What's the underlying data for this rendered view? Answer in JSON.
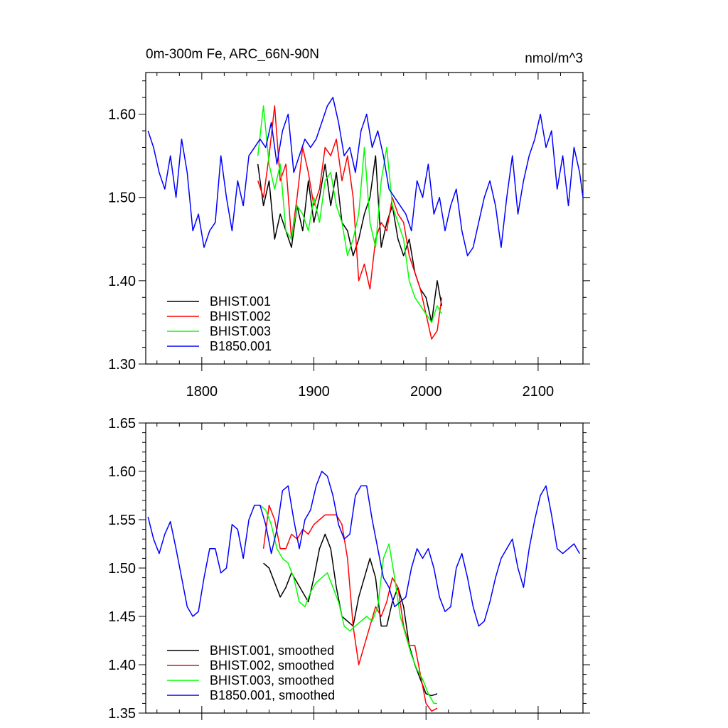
{
  "chart_data": [
    {
      "type": "line",
      "title": "0m-300m Fe, ARC_66N-90N",
      "units": "nmol/m^3",
      "xlim": [
        1750,
        2140
      ],
      "ylim": [
        1.3,
        1.65
      ],
      "xticks": [
        1800,
        1900,
        2000,
        2100
      ],
      "xtick_labels": [
        "1800",
        "1900",
        "2000",
        "2100"
      ],
      "yticks": [
        1.3,
        1.4,
        1.5,
        1.6
      ],
      "ytick_labels": [
        "1.30",
        "1.40",
        "1.50",
        "1.60"
      ],
      "legend_position": "bottom-left",
      "series": [
        {
          "name": "BHIST.001",
          "color": "#000000",
          "x": [
            1850,
            1855,
            1860,
            1865,
            1870,
            1875,
            1880,
            1885,
            1890,
            1895,
            1900,
            1905,
            1910,
            1915,
            1920,
            1925,
            1930,
            1935,
            1940,
            1945,
            1950,
            1955,
            1960,
            1965,
            1970,
            1975,
            1980,
            1985,
            1990,
            1995,
            2000,
            2005,
            2010,
            2014
          ],
          "y": [
            1.54,
            1.49,
            1.52,
            1.45,
            1.48,
            1.46,
            1.44,
            1.49,
            1.46,
            1.52,
            1.47,
            1.5,
            1.54,
            1.49,
            1.53,
            1.47,
            1.46,
            1.43,
            1.45,
            1.48,
            1.5,
            1.55,
            1.44,
            1.47,
            1.49,
            1.45,
            1.43,
            1.45,
            1.41,
            1.39,
            1.38,
            1.35,
            1.4,
            1.37
          ]
        },
        {
          "name": "BHIST.002",
          "color": "#ff0000",
          "x": [
            1850,
            1855,
            1860,
            1865,
            1870,
            1875,
            1880,
            1885,
            1890,
            1895,
            1900,
            1905,
            1910,
            1915,
            1920,
            1925,
            1930,
            1935,
            1940,
            1945,
            1950,
            1955,
            1960,
            1965,
            1970,
            1975,
            1980,
            1985,
            1990,
            1995,
            2000,
            2005,
            2010,
            2014
          ],
          "y": [
            1.52,
            1.5,
            1.55,
            1.61,
            1.52,
            1.54,
            1.45,
            1.5,
            1.56,
            1.53,
            1.49,
            1.51,
            1.56,
            1.55,
            1.57,
            1.52,
            1.55,
            1.5,
            1.4,
            1.42,
            1.39,
            1.45,
            1.47,
            1.46,
            1.5,
            1.48,
            1.47,
            1.43,
            1.41,
            1.39,
            1.36,
            1.33,
            1.34,
            1.38
          ]
        },
        {
          "name": "BHIST.003",
          "color": "#00ff00",
          "x": [
            1850,
            1855,
            1860,
            1865,
            1870,
            1875,
            1880,
            1885,
            1890,
            1895,
            1900,
            1905,
            1910,
            1915,
            1920,
            1925,
            1930,
            1935,
            1940,
            1945,
            1950,
            1955,
            1960,
            1965,
            1970,
            1975,
            1980,
            1985,
            1990,
            1995,
            2000,
            2005,
            2010,
            2014
          ],
          "y": [
            1.55,
            1.61,
            1.54,
            1.51,
            1.54,
            1.46,
            1.45,
            1.49,
            1.48,
            1.46,
            1.5,
            1.47,
            1.52,
            1.53,
            1.49,
            1.47,
            1.43,
            1.45,
            1.48,
            1.56,
            1.47,
            1.44,
            1.52,
            1.56,
            1.49,
            1.47,
            1.45,
            1.4,
            1.38,
            1.37,
            1.36,
            1.35,
            1.37,
            1.36
          ]
        },
        {
          "name": "B1850.001",
          "color": "#0000ff",
          "x": [
            1752,
            1757,
            1762,
            1767,
            1772,
            1777,
            1782,
            1787,
            1792,
            1797,
            1802,
            1807,
            1812,
            1817,
            1822,
            1827,
            1832,
            1837,
            1842,
            1847,
            1852,
            1857,
            1862,
            1867,
            1872,
            1877,
            1882,
            1887,
            1892,
            1897,
            1902,
            1907,
            1912,
            1917,
            1922,
            1927,
            1932,
            1937,
            1942,
            1947,
            1952,
            1957,
            1962,
            1967,
            1972,
            1977,
            1982,
            1987,
            1992,
            1997,
            2002,
            2007,
            2012,
            2017,
            2022,
            2027,
            2032,
            2037,
            2042,
            2047,
            2052,
            2057,
            2062,
            2067,
            2072,
            2077,
            2082,
            2087,
            2092,
            2097,
            2102,
            2107,
            2112,
            2117,
            2122,
            2127,
            2132,
            2137,
            2140
          ],
          "y": [
            1.58,
            1.56,
            1.53,
            1.51,
            1.55,
            1.5,
            1.57,
            1.53,
            1.46,
            1.48,
            1.44,
            1.46,
            1.47,
            1.55,
            1.5,
            1.46,
            1.52,
            1.49,
            1.55,
            1.56,
            1.57,
            1.56,
            1.59,
            1.54,
            1.58,
            1.6,
            1.53,
            1.55,
            1.57,
            1.56,
            1.57,
            1.59,
            1.61,
            1.62,
            1.59,
            1.55,
            1.56,
            1.53,
            1.58,
            1.6,
            1.56,
            1.58,
            1.55,
            1.51,
            1.5,
            1.49,
            1.48,
            1.46,
            1.52,
            1.5,
            1.54,
            1.48,
            1.5,
            1.46,
            1.49,
            1.51,
            1.46,
            1.43,
            1.44,
            1.47,
            1.5,
            1.52,
            1.49,
            1.44,
            1.5,
            1.55,
            1.48,
            1.52,
            1.55,
            1.57,
            1.6,
            1.56,
            1.58,
            1.51,
            1.55,
            1.49,
            1.56,
            1.53,
            1.5
          ]
        }
      ]
    },
    {
      "type": "line",
      "title": "",
      "xlim": [
        1750,
        2140
      ],
      "ylim": [
        1.35,
        1.65
      ],
      "xticks": [
        1800,
        1900,
        2000,
        2100
      ],
      "xtick_labels": [],
      "yticks": [
        1.35,
        1.4,
        1.45,
        1.5,
        1.55,
        1.6,
        1.65
      ],
      "ytick_labels": [
        "1.35",
        "1.40",
        "1.45",
        "1.50",
        "1.55",
        "1.60",
        "1.65"
      ],
      "legend_position": "bottom-left",
      "series": [
        {
          "name": "BHIST.001, smoothed",
          "color": "#000000",
          "x": [
            1855,
            1860,
            1865,
            1870,
            1875,
            1880,
            1885,
            1890,
            1895,
            1900,
            1905,
            1910,
            1915,
            1920,
            1925,
            1930,
            1935,
            1940,
            1945,
            1950,
            1955,
            1960,
            1965,
            1970,
            1975,
            1980,
            1985,
            1990,
            1995,
            2000,
            2005,
            2010
          ],
          "y": [
            1.505,
            1.5,
            1.485,
            1.47,
            1.48,
            1.495,
            1.485,
            1.475,
            1.465,
            1.49,
            1.52,
            1.535,
            1.52,
            1.48,
            1.45,
            1.445,
            1.44,
            1.47,
            1.49,
            1.51,
            1.49,
            1.44,
            1.44,
            1.465,
            1.48,
            1.46,
            1.42,
            1.4,
            1.385,
            1.37,
            1.368,
            1.37
          ]
        },
        {
          "name": "BHIST.002, smoothed",
          "color": "#ff0000",
          "x": [
            1855,
            1860,
            1865,
            1870,
            1875,
            1880,
            1885,
            1890,
            1895,
            1900,
            1905,
            1910,
            1915,
            1920,
            1925,
            1930,
            1935,
            1940,
            1945,
            1950,
            1955,
            1960,
            1965,
            1970,
            1975,
            1980,
            1985,
            1990,
            1995,
            2000,
            2005,
            2010
          ],
          "y": [
            1.52,
            1.565,
            1.55,
            1.52,
            1.52,
            1.535,
            1.53,
            1.54,
            1.535,
            1.545,
            1.55,
            1.555,
            1.555,
            1.555,
            1.545,
            1.51,
            1.44,
            1.4,
            1.42,
            1.44,
            1.46,
            1.45,
            1.465,
            1.49,
            1.48,
            1.44,
            1.42,
            1.42,
            1.39,
            1.36,
            1.352,
            1.355
          ]
        },
        {
          "name": "BHIST.003, smoothed",
          "color": "#00ff00",
          "x": [
            1852,
            1857,
            1862,
            1867,
            1872,
            1877,
            1882,
            1887,
            1892,
            1897,
            1902,
            1907,
            1912,
            1917,
            1922,
            1927,
            1932,
            1937,
            1942,
            1947,
            1952,
            1957,
            1962,
            1967,
            1972,
            1977,
            1982,
            1987,
            1992,
            1997,
            2002,
            2007,
            2010
          ],
          "y": [
            1.565,
            1.56,
            1.545,
            1.52,
            1.51,
            1.505,
            1.49,
            1.465,
            1.46,
            1.475,
            1.485,
            1.49,
            1.495,
            1.48,
            1.465,
            1.44,
            1.435,
            1.44,
            1.445,
            1.45,
            1.445,
            1.46,
            1.51,
            1.525,
            1.49,
            1.45,
            1.43,
            1.41,
            1.395,
            1.385,
            1.37,
            1.36,
            1.36
          ]
        },
        {
          "name": "B1850.001, smoothed",
          "color": "#0000ff",
          "x": [
            1752,
            1757,
            1762,
            1767,
            1772,
            1777,
            1782,
            1787,
            1792,
            1797,
            1802,
            1807,
            1812,
            1817,
            1822,
            1827,
            1832,
            1837,
            1842,
            1847,
            1852,
            1857,
            1862,
            1867,
            1872,
            1877,
            1882,
            1887,
            1892,
            1897,
            1902,
            1907,
            1912,
            1917,
            1922,
            1927,
            1932,
            1937,
            1942,
            1947,
            1952,
            1957,
            1962,
            1967,
            1972,
            1977,
            1982,
            1987,
            1992,
            1997,
            2002,
            2007,
            2012,
            2017,
            2022,
            2027,
            2032,
            2037,
            2042,
            2047,
            2052,
            2057,
            2062,
            2067,
            2072,
            2077,
            2082,
            2087,
            2092,
            2097,
            2102,
            2107,
            2112,
            2117,
            2122,
            2127,
            2132,
            2137
          ],
          "y": [
            1.553,
            1.53,
            1.515,
            1.535,
            1.548,
            1.52,
            1.49,
            1.46,
            1.45,
            1.455,
            1.49,
            1.52,
            1.52,
            1.495,
            1.5,
            1.545,
            1.54,
            1.51,
            1.55,
            1.565,
            1.565,
            1.545,
            1.515,
            1.54,
            1.58,
            1.585,
            1.55,
            1.52,
            1.55,
            1.56,
            1.585,
            1.6,
            1.595,
            1.575,
            1.545,
            1.53,
            1.535,
            1.575,
            1.585,
            1.585,
            1.55,
            1.52,
            1.49,
            1.48,
            1.46,
            1.465,
            1.47,
            1.5,
            1.52,
            1.51,
            1.52,
            1.5,
            1.47,
            1.455,
            1.46,
            1.5,
            1.515,
            1.49,
            1.46,
            1.44,
            1.445,
            1.465,
            1.49,
            1.51,
            1.52,
            1.53,
            1.5,
            1.48,
            1.52,
            1.55,
            1.575,
            1.585,
            1.555,
            1.52,
            1.515,
            1.52,
            1.525,
            1.515
          ]
        }
      ]
    }
  ]
}
